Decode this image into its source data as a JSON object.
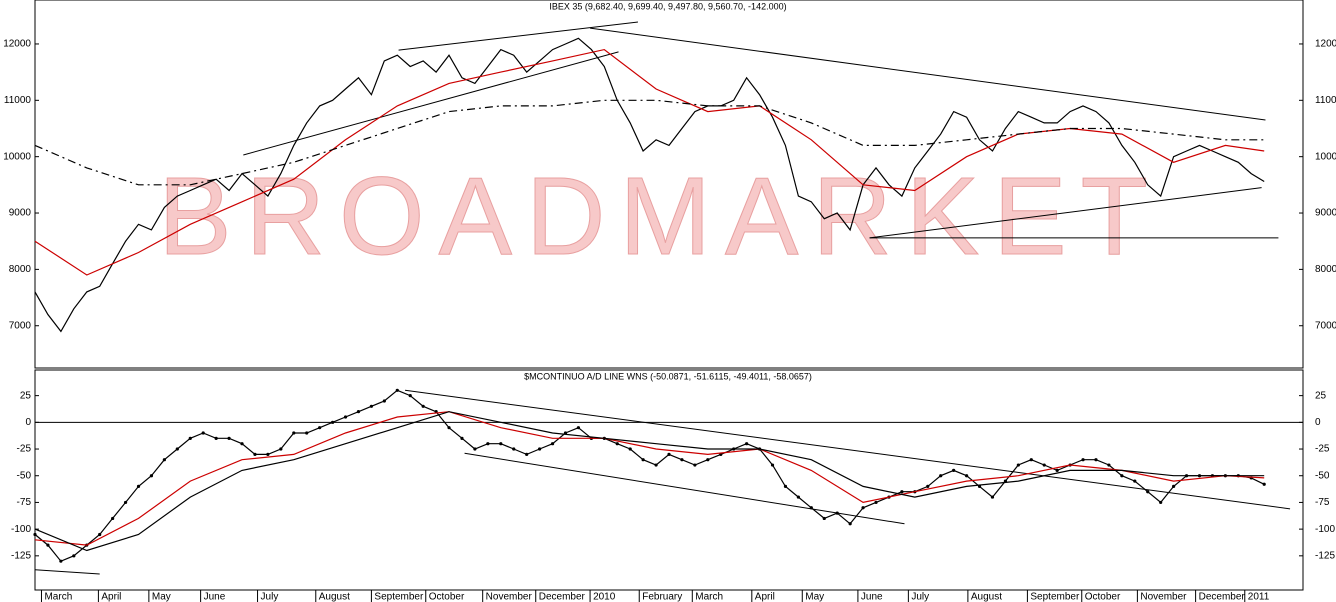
{
  "chart_data": [
    {
      "type": "line",
      "title": "IBEX 35 (9,682.40, 9,699.40, 9,497.80, 9,560.70, -142.000)",
      "watermark": "BROADMARKET",
      "xlim": [
        0,
        98
      ],
      "ylim": [
        6250,
        12780
      ],
      "yticks": [
        7000,
        8000,
        9000,
        10000,
        11000,
        12000
      ],
      "series": [
        {
          "color": "#000000",
          "dash": false,
          "x": [
            0,
            1,
            2,
            3,
            4,
            5,
            6,
            7,
            8,
            9,
            10,
            11,
            12,
            13,
            14,
            15,
            16,
            17,
            18,
            19,
            20,
            21,
            22,
            23,
            24,
            25,
            26,
            27,
            28,
            29,
            30,
            31,
            32,
            33,
            34,
            35,
            36,
            37,
            38,
            39,
            40,
            41,
            42,
            43,
            44,
            45,
            46,
            47,
            48,
            49,
            50,
            51,
            52,
            53,
            54,
            55,
            56,
            57,
            58,
            59,
            60,
            61,
            62,
            63,
            64,
            65,
            66,
            67,
            68,
            69,
            70,
            71,
            72,
            73,
            74,
            75,
            76,
            77,
            78,
            79,
            80,
            81,
            82,
            83,
            84,
            85,
            86,
            87,
            88,
            89,
            90,
            91,
            92,
            93,
            94,
            95
          ],
          "values": [
            7600,
            7200,
            6900,
            7300,
            7600,
            7700,
            8100,
            8500,
            8800,
            8700,
            9100,
            9300,
            9400,
            9500,
            9600,
            9400,
            9700,
            9500,
            9300,
            9700,
            10200,
            10600,
            10900,
            11000,
            11200,
            11400,
            11100,
            11700,
            11800,
            11600,
            11700,
            11500,
            11800,
            11400,
            11300,
            11600,
            11900,
            11800,
            11500,
            11700,
            11900,
            12000,
            12100,
            11900,
            11600,
            11000,
            10600,
            10100,
            10300,
            10200,
            10500,
            10800,
            10900,
            10900,
            11000,
            11400,
            11100,
            10700,
            10200,
            9300,
            9200,
            8900,
            9000,
            8700,
            9500,
            9800,
            9500,
            9300,
            9800,
            10100,
            10400,
            10800,
            10700,
            10300,
            10100,
            10500,
            10800,
            10700,
            10600,
            10600,
            10800,
            10900,
            10800,
            10600,
            10200,
            9900,
            9500,
            9300,
            10000,
            10100,
            10200,
            10100,
            10000,
            9900,
            9700,
            9560
          ]
        },
        {
          "color": "#cc0000",
          "dash": false,
          "x": [
            0,
            4,
            8,
            12,
            16,
            20,
            24,
            28,
            32,
            36,
            40,
            44,
            48,
            52,
            56,
            60,
            64,
            68,
            72,
            76,
            80,
            84,
            88,
            92,
            95
          ],
          "values": [
            8500,
            7900,
            8300,
            8800,
            9200,
            9600,
            10300,
            10900,
            11300,
            11500,
            11700,
            11900,
            11200,
            10800,
            10900,
            10300,
            9500,
            9400,
            10000,
            10400,
            10500,
            10400,
            9900,
            10200,
            10100
          ]
        },
        {
          "color": "#000000",
          "dash": true,
          "x": [
            0,
            4,
            8,
            12,
            16,
            20,
            24,
            28,
            32,
            36,
            40,
            44,
            48,
            52,
            56,
            60,
            64,
            68,
            72,
            76,
            80,
            84,
            88,
            92,
            95
          ],
          "values": [
            10200,
            9800,
            9500,
            9500,
            9700,
            9900,
            10200,
            10500,
            10800,
            10900,
            10900,
            11000,
            11000,
            10900,
            10900,
            10600,
            10200,
            10200,
            10300,
            10400,
            10500,
            10500,
            10400,
            10300,
            10300
          ]
        }
      ],
      "trendlines": [
        {
          "x": [
            16.1,
            45.1
          ],
          "values": [
            10030,
            11860
          ]
        },
        {
          "x": [
            28.1,
            46.6
          ],
          "values": [
            11890,
            12390
          ]
        },
        {
          "x": [
            42.9,
            95.1
          ],
          "values": [
            12280,
            10650
          ]
        },
        {
          "x": [
            64.5,
            94.8
          ],
          "values": [
            8560,
            9450
          ]
        },
        {
          "x": [
            64.5,
            96.1
          ],
          "values": [
            8560,
            8560
          ]
        }
      ]
    },
    {
      "type": "line",
      "title": "$MCONTINUO A/D LINE WNS (-50.0871, -51.6115, -49.4011, -58.0657)",
      "xlim": [
        0,
        98
      ],
      "ylim": [
        -157,
        49
      ],
      "hline": 0,
      "yticks": [
        25,
        0,
        -25,
        -50,
        -75,
        -100,
        -125
      ],
      "xticks": [
        {
          "value": 0.5,
          "label": "March"
        },
        {
          "value": 4.9,
          "label": "April"
        },
        {
          "value": 8.8,
          "label": "May"
        },
        {
          "value": 12.8,
          "label": "June"
        },
        {
          "value": 17.2,
          "label": "July"
        },
        {
          "value": 21.7,
          "label": "August"
        },
        {
          "value": 26,
          "label": "September"
        },
        {
          "value": 30.2,
          "label": "October"
        },
        {
          "value": 34.6,
          "label": "November"
        },
        {
          "value": 38.7,
          "label": "December"
        },
        {
          "value": 42.9,
          "label": "2010"
        },
        {
          "value": 46.7,
          "label": "February"
        },
        {
          "value": 50.8,
          "label": "March"
        },
        {
          "value": 55.4,
          "label": "April"
        },
        {
          "value": 59.3,
          "label": "May"
        },
        {
          "value": 63.6,
          "label": "June"
        },
        {
          "value": 67.5,
          "label": "July"
        },
        {
          "value": 72.1,
          "label": "August"
        },
        {
          "value": 76.7,
          "label": "September"
        },
        {
          "value": 80.9,
          "label": "October"
        },
        {
          "value": 85.2,
          "label": "November"
        },
        {
          "value": 89.7,
          "label": "December"
        },
        {
          "value": 93.5,
          "label": "2011"
        }
      ],
      "series": [
        {
          "color": "#000000",
          "dash": false,
          "dots": true,
          "x": [
            0,
            1,
            2,
            3,
            4,
            5,
            6,
            7,
            8,
            9,
            10,
            11,
            12,
            13,
            14,
            15,
            16,
            17,
            18,
            19,
            20,
            21,
            22,
            23,
            24,
            25,
            26,
            27,
            28,
            29,
            30,
            31,
            32,
            33,
            34,
            35,
            36,
            37,
            38,
            39,
            40,
            41,
            42,
            43,
            44,
            45,
            46,
            47,
            48,
            49,
            50,
            51,
            52,
            53,
            54,
            55,
            56,
            57,
            58,
            59,
            60,
            61,
            62,
            63,
            64,
            65,
            66,
            67,
            68,
            69,
            70,
            71,
            72,
            73,
            74,
            75,
            76,
            77,
            78,
            79,
            80,
            81,
            82,
            83,
            84,
            85,
            86,
            87,
            88,
            89,
            90,
            91,
            92,
            93,
            94,
            95
          ],
          "values": [
            -105,
            -115,
            -130,
            -125,
            -115,
            -105,
            -90,
            -75,
            -60,
            -50,
            -35,
            -25,
            -15,
            -10,
            -15,
            -15,
            -20,
            -30,
            -30,
            -25,
            -10,
            -10,
            -5,
            0,
            5,
            10,
            15,
            20,
            30,
            25,
            15,
            10,
            -5,
            -15,
            -25,
            -20,
            -20,
            -25,
            -30,
            -25,
            -20,
            -10,
            -5,
            -15,
            -15,
            -20,
            -25,
            -35,
            -40,
            -30,
            -35,
            -40,
            -35,
            -30,
            -25,
            -20,
            -25,
            -40,
            -60,
            -70,
            -80,
            -90,
            -85,
            -95,
            -80,
            -75,
            -70,
            -65,
            -65,
            -60,
            -50,
            -45,
            -50,
            -60,
            -70,
            -55,
            -40,
            -35,
            -40,
            -45,
            -40,
            -35,
            -35,
            -40,
            -50,
            -55,
            -65,
            -75,
            -60,
            -50,
            -50,
            -50,
            -50,
            -50,
            -52,
            -58
          ]
        },
        {
          "color": "#cc0000",
          "dash": false,
          "x": [
            0,
            4,
            8,
            12,
            16,
            20,
            24,
            28,
            32,
            36,
            40,
            44,
            48,
            52,
            56,
            60,
            64,
            68,
            72,
            76,
            80,
            84,
            88,
            92,
            95
          ],
          "values": [
            -110,
            -115,
            -90,
            -55,
            -35,
            -30,
            -10,
            5,
            10,
            -5,
            -15,
            -15,
            -25,
            -30,
            -25,
            -45,
            -75,
            -65,
            -55,
            -50,
            -40,
            -45,
            -55,
            -50,
            -52
          ]
        },
        {
          "color": "#000000",
          "dash": false,
          "x": [
            0,
            4,
            8,
            12,
            16,
            20,
            24,
            28,
            32,
            36,
            40,
            44,
            48,
            52,
            56,
            60,
            64,
            68,
            72,
            76,
            80,
            84,
            88,
            92,
            95
          ],
          "values": [
            -100,
            -120,
            -105,
            -70,
            -45,
            -35,
            -20,
            -5,
            10,
            0,
            -10,
            -15,
            -20,
            -25,
            -25,
            -35,
            -60,
            -70,
            -60,
            -55,
            -45,
            -45,
            -50,
            -50,
            -50
          ]
        }
      ],
      "trendlines": [
        {
          "x": [
            28.6,
            97
          ],
          "values": [
            30,
            -81
          ]
        },
        {
          "x": [
            33.2,
            67.2
          ],
          "values": [
            -29,
            -95
          ]
        },
        {
          "x": [
            0,
            5
          ],
          "values": [
            -138,
            -142
          ]
        }
      ]
    }
  ]
}
